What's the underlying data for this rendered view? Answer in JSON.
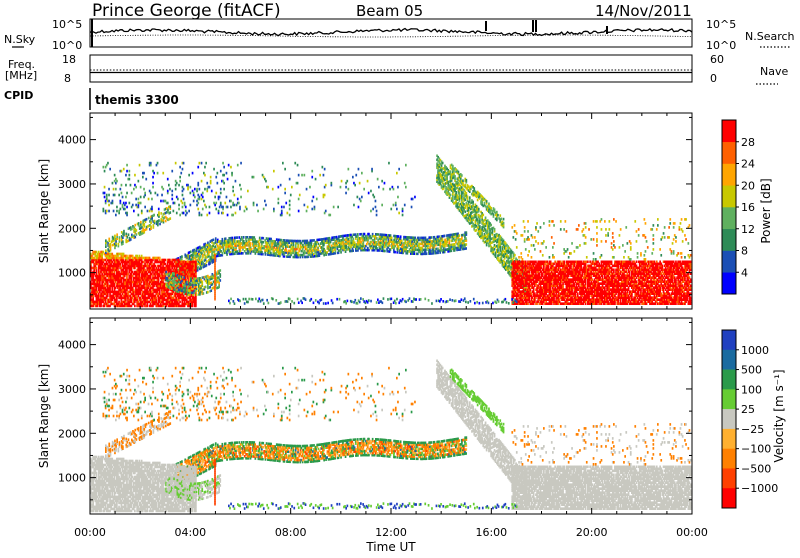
{
  "header": {
    "station": "Prince George (fitACF)",
    "beam": "Beam 05",
    "date": "14/Nov/2011"
  },
  "side_labels": {
    "nsky": "N.Sky",
    "freq_line1": "Freq.",
    "freq_line2": "[MHz]",
    "cpid": "CPID",
    "nsearch": "N.Search",
    "nave": "Nave"
  },
  "strip_ticks": {
    "nsky_left": [
      "10^5",
      "10^0"
    ],
    "nsky_right": [
      "10^5",
      "10^0"
    ],
    "freq_left": [
      "18",
      "8"
    ],
    "nave_right": [
      "60",
      "0"
    ]
  },
  "cpid_program": "themis 3300",
  "colors": {
    "power_bins": [
      "#0000ff",
      "#1b4fb5",
      "#2e8b57",
      "#5fb05f",
      "#c8c800",
      "#ffa500",
      "#ff6000",
      "#ff0000"
    ],
    "velocity_bins": [
      "#2040c0",
      "#1a6ba0",
      "#2a9a4a",
      "#66cc33",
      "#c8c8c0",
      "#ffb030",
      "#ff8000",
      "#ff4000",
      "#ff0000"
    ],
    "ground_scatter": "#c8c8c0"
  },
  "chart_data": [
    {
      "type": "heatmap",
      "title": "",
      "xlabel": "",
      "ylabel": "Slant Range [km]",
      "x_ticks": [
        "00:00",
        "04:00",
        "08:00",
        "12:00",
        "16:00",
        "20:00",
        "00:00"
      ],
      "y_ticks": [
        "1000",
        "2000",
        "3000",
        "4000"
      ],
      "xlim": [
        0,
        24
      ],
      "ylim": [
        180,
        4600
      ],
      "colorbar_label": "Power [dB]",
      "colorbar_ticks": [
        "4",
        "8",
        "12",
        "16",
        "20",
        "24",
        "28"
      ],
      "colorbar_range": [
        0,
        32
      ]
    },
    {
      "type": "heatmap",
      "title": "",
      "xlabel": "Time UT",
      "ylabel": "Slant Range [km]",
      "x_ticks": [
        "00:00",
        "04:00",
        "08:00",
        "12:00",
        "16:00",
        "20:00",
        "00:00"
      ],
      "y_ticks": [
        "1000",
        "2000",
        "3000",
        "4000"
      ],
      "xlim": [
        0,
        24
      ],
      "ylim": [
        180,
        4600
      ],
      "colorbar_label": "Velocity [m s⁻¹]",
      "colorbar_ticks": [
        "1000",
        "500",
        "100",
        "25",
        "−25",
        "−100",
        "−500",
        "−1000"
      ]
    }
  ]
}
